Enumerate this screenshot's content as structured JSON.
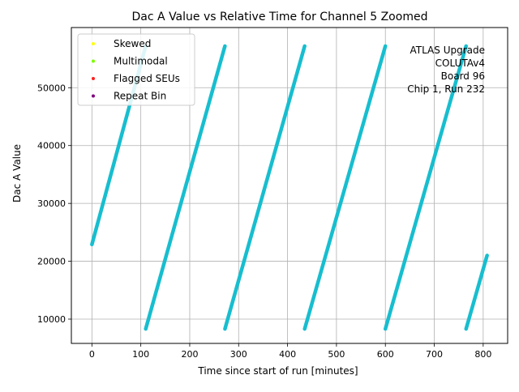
{
  "chart_data": {
    "type": "scatter",
    "title": "Dac A Value vs Relative Time for Channel 5 Zoomed",
    "xlabel": "Time since start of run [minutes]",
    "ylabel": "Dac A Value",
    "xlim": [
      -42,
      850
    ],
    "ylim": [
      5800,
      60400
    ],
    "xticks": [
      0,
      100,
      200,
      300,
      400,
      500,
      600,
      700,
      800
    ],
    "yticks": [
      10000,
      20000,
      30000,
      40000,
      50000
    ],
    "grid": true,
    "legend_position": "upper-left",
    "legend": [
      {
        "label": "Skewed",
        "color": "#ffff00"
      },
      {
        "label": "Multimodal",
        "color": "#7cfc00"
      },
      {
        "label": "Flagged SEUs",
        "color": "#ff2020"
      },
      {
        "label": "Repeat Bin",
        "color": "#800080"
      }
    ],
    "annotation_lines": [
      "ATLAS Upgrade",
      "COLUTAv4",
      "Board 96",
      "Chip 1, Run 232"
    ],
    "series": [
      {
        "color": "#17becf",
        "segments": [
          {
            "x": [
              0,
              110
            ],
            "y": [
              22900,
              57200
            ]
          },
          {
            "x": [
              110,
              272
            ],
            "y": [
              8300,
              57200
            ]
          },
          {
            "x": [
              272,
              435
            ],
            "y": [
              8300,
              57200
            ]
          },
          {
            "x": [
              435,
              600
            ],
            "y": [
              8300,
              57200
            ]
          },
          {
            "x": [
              600,
              765
            ],
            "y": [
              8300,
              57200
            ]
          },
          {
            "x": [
              765,
              808
            ],
            "y": [
              8300,
              21000
            ]
          }
        ]
      }
    ]
  }
}
